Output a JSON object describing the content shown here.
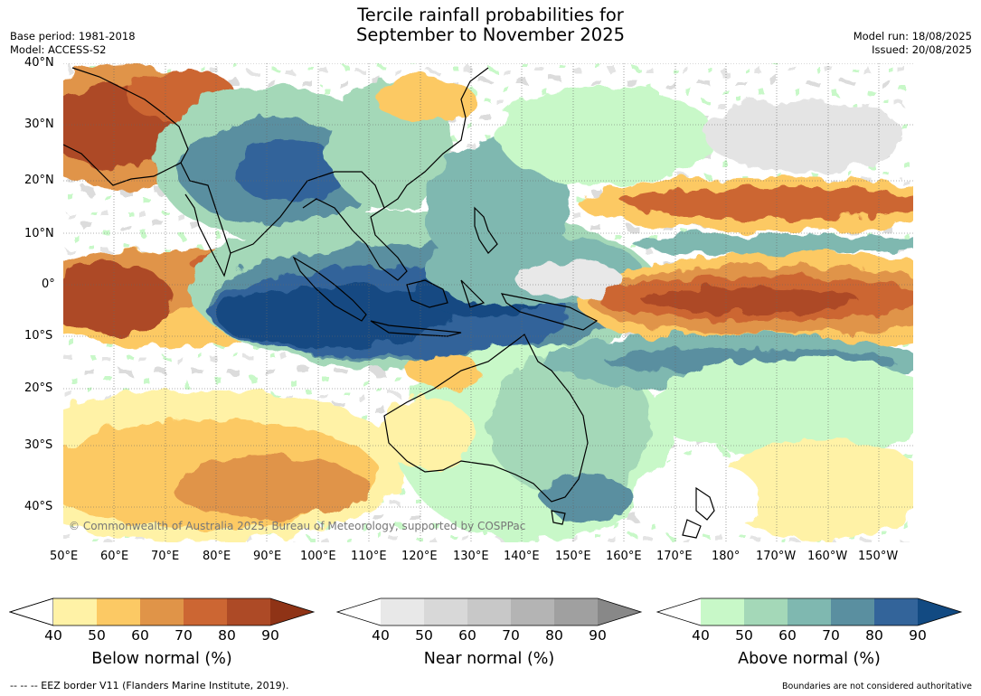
{
  "title": {
    "line1": "Tercile rainfall probabilities for",
    "line2": "September to November 2025"
  },
  "meta_left": {
    "base_period": "Base period: 1981-2018",
    "model": "Model: ACCESS-S2"
  },
  "meta_right": {
    "model_run": "Model run: 18/08/2025",
    "issued": "Issued: 20/08/2025"
  },
  "map": {
    "lat_labels": [
      "40°N",
      "30°N",
      "20°N",
      "10°N",
      "0°",
      "10°S",
      "20°S",
      "30°S",
      "40°S"
    ],
    "lon_labels": [
      "50°E",
      "60°E",
      "70°E",
      "80°E",
      "90°E",
      "100°E",
      "110°E",
      "120°E",
      "130°E",
      "140°E",
      "150°E",
      "160°E",
      "170°E",
      "180°",
      "170°W",
      "160°W",
      "150°W"
    ],
    "copyright": "© Commonwealth of Australia 2025, Bureau of Meteorology, supported by COSPPac"
  },
  "colorbars": {
    "below": {
      "title": "Below normal (%)",
      "ticks": [
        "40",
        "50",
        "60",
        "70",
        "80",
        "90"
      ],
      "colors": [
        "#fff2a6",
        "#fcc964",
        "#e09448",
        "#cc6633",
        "#ad4a26",
        "#8f3316"
      ]
    },
    "near": {
      "title": "Near normal (%)",
      "ticks": [
        "40",
        "50",
        "60",
        "70",
        "80",
        "90"
      ],
      "colors": [
        "#e8e8e8",
        "#d8d8d8",
        "#c8c8c8",
        "#b4b4b4",
        "#a0a0a0",
        "#888888"
      ]
    },
    "above": {
      "title": "Above normal (%)",
      "ticks": [
        "40",
        "50",
        "60",
        "70",
        "80",
        "90"
      ],
      "colors": [
        "#c8f8c8",
        "#a4d8b8",
        "#7fb8b0",
        "#5a8fa0",
        "#33649a",
        "#124a82"
      ]
    }
  },
  "footer": {
    "eez": "--  --  -- EEZ border V11 (Flanders Marine Institute, 2019).",
    "disclaimer": "Boundaries are not considered authoritative"
  }
}
